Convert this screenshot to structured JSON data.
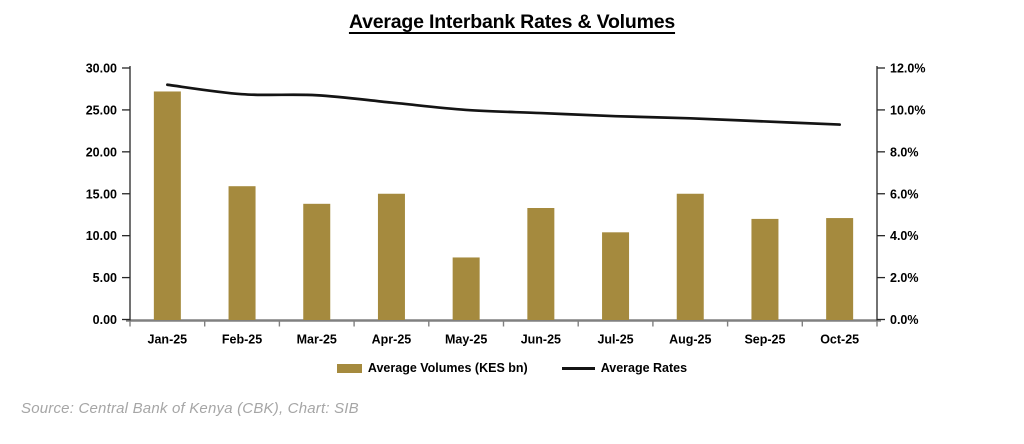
{
  "chart": {
    "title": "Average Interbank Rates & Volumes",
    "legend": {
      "volumes": "Average Volumes (KES bn)",
      "rates": "Average Rates"
    },
    "source": "Source: Central Bank of Kenya (CBK), Chart: SIB"
  },
  "chart_data": {
    "type": "bar",
    "subtype": "combo-bar-line-dual-axis",
    "title": "Average Interbank Rates & Volumes",
    "categories": [
      "Jan-25",
      "Feb-25",
      "Mar-25",
      "Apr-25",
      "May-25",
      "Jun-25",
      "Jul-25",
      "Aug-25",
      "Sep-25",
      "Oct-25"
    ],
    "series": [
      {
        "name": "Average Volumes (KES bn)",
        "type": "bar",
        "axis": "left",
        "values": [
          27.2,
          15.9,
          13.8,
          15.0,
          7.4,
          13.3,
          10.4,
          15.0,
          12.0,
          12.1
        ]
      },
      {
        "name": "Average Rates",
        "type": "line",
        "axis": "right",
        "values": [
          11.2,
          10.75,
          10.7,
          10.35,
          10.0,
          9.85,
          9.7,
          9.6,
          9.45,
          9.3
        ]
      }
    ],
    "left_axis": {
      "label": "",
      "range": [
        0,
        30
      ],
      "ticks": [
        {
          "v": 30,
          "label": "30.00"
        },
        {
          "v": 25,
          "label": "25.00"
        },
        {
          "v": 20,
          "label": "20.00"
        },
        {
          "v": 15,
          "label": "15.00"
        },
        {
          "v": 10,
          "label": "10.00"
        },
        {
          "v": 5,
          "label": "5.00"
        },
        {
          "v": 0,
          "label": "0.00"
        }
      ]
    },
    "right_axis": {
      "label": "",
      "range": [
        0,
        12
      ],
      "ticks": [
        {
          "v": 12,
          "label": "12.0%"
        },
        {
          "v": 10,
          "label": "10.0%"
        },
        {
          "v": 8,
          "label": "8.0%"
        },
        {
          "v": 6,
          "label": "6.0%"
        },
        {
          "v": 4,
          "label": "4.0%"
        },
        {
          "v": 2,
          "label": "2.0%"
        },
        {
          "v": 0,
          "label": "0.0%"
        }
      ]
    },
    "grid": false,
    "legend_position": "bottom",
    "colors": {
      "bar": "#A58A3E",
      "line": "#141414",
      "baseline": "#808080",
      "axis": "#262626",
      "text": "#000000",
      "source_text": "#A6A6A6"
    }
  }
}
